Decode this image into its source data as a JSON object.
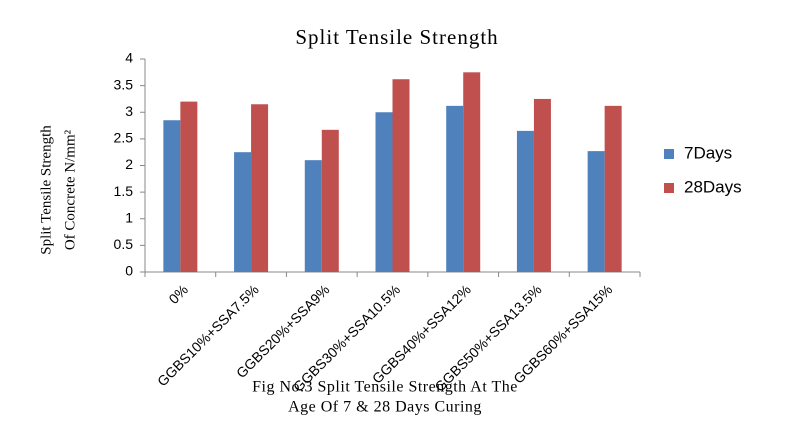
{
  "chart_data": {
    "type": "bar",
    "title": "Split Tensile Strength",
    "y_label": [
      "Split Tensile Strength",
      "Of Concrete N/mm²"
    ],
    "caption": [
      "Fig No.3 Split Tensile Strength At The",
      "Age Of 7 & 28 Days Curing"
    ],
    "categories": [
      "0%",
      "GGBS10%+SSA7.5%",
      "GGBS20%+SSA9%",
      "GGBS30%+SSA10.5%",
      "GGBS40%+SSA12%",
      "GGBS50%+SSA13.5%",
      "GGBS60%+SSA15%"
    ],
    "series": [
      {
        "name": "7Days",
        "color": "#4f81bd",
        "values": [
          2.85,
          2.25,
          2.1,
          3.0,
          3.12,
          2.65,
          2.27
        ]
      },
      {
        "name": "28Days",
        "color": "#c0504d",
        "values": [
          3.2,
          3.15,
          2.67,
          3.62,
          3.75,
          3.25,
          3.12
        ]
      }
    ],
    "ylim": [
      0,
      4
    ],
    "yticks": [
      0,
      0.5,
      1,
      1.5,
      2,
      2.5,
      3,
      3.5,
      4
    ],
    "grid": false,
    "legend": "right"
  }
}
